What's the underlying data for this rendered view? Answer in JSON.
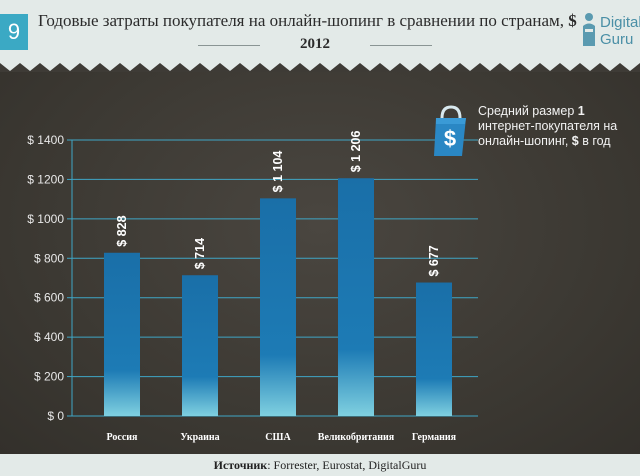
{
  "header": {
    "page_number": "9",
    "title": "Годовые затраты покупателя на онлайн-шопинг в сравнении по странам,",
    "title_currency": "$",
    "year": "2012",
    "logo_line1": "Digital",
    "logo_line2": "Guru"
  },
  "legend": {
    "currency_symbol": "$",
    "text_part1": "Средний размер",
    "text_bold": "1",
    "text_part2": "интернет-покупателя на онлайн-шопинг,",
    "text_currency": "$",
    "text_part3": "в год"
  },
  "footer": {
    "source_label": "Источник",
    "source_text": ": Forrester, Eurostat, DigitalGuru"
  },
  "chart_data": {
    "type": "bar",
    "categories": [
      "Россия",
      "Украина",
      "США",
      "Великобритания",
      "Германия"
    ],
    "values": [
      828,
      714,
      1104,
      1206,
      677
    ],
    "value_labels": [
      "$ 828",
      "$ 714",
      "$ 1 104",
      "$ 1 206",
      "$ 677"
    ],
    "ylim": [
      0,
      1400
    ],
    "yticks": [
      0,
      200,
      400,
      600,
      800,
      1000,
      1200,
      1400
    ],
    "ytick_labels": [
      "$ 0",
      "$ 200",
      "$ 400",
      "$ 600",
      "$ 800",
      "$ 1000",
      "$ 1200",
      "$ 1400"
    ],
    "grid": true,
    "bar_color_top": "#1a6fa8",
    "bar_color_bottom": "#7fd0e0",
    "legend_placement": "top-right"
  }
}
